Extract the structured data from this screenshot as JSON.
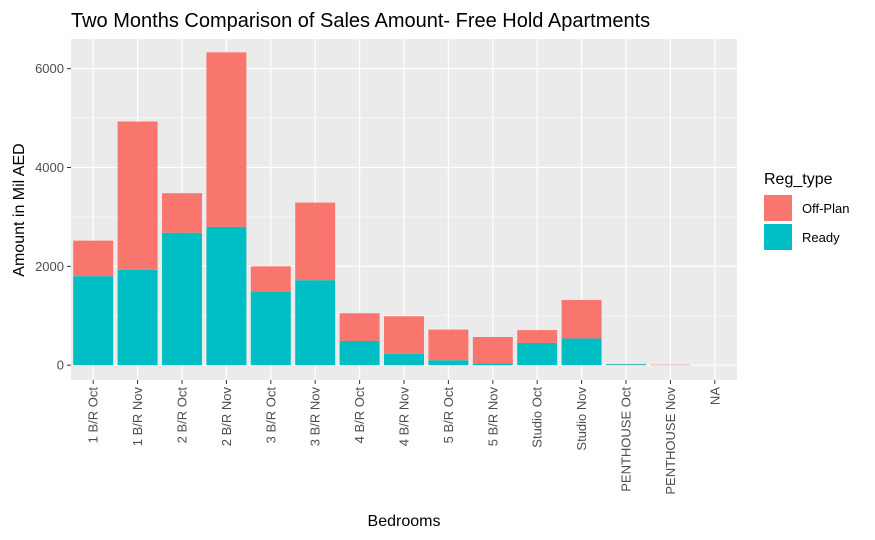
{
  "chart_data": {
    "type": "bar",
    "stacked": true,
    "title": "Two Months Comparison of Sales Amount- Free Hold Apartments",
    "xlabel": "Bedrooms",
    "ylabel": "Amount in Mil AED",
    "ylim": [
      -300,
      6600
    ],
    "yticks": [
      0,
      2000,
      4000,
      6000
    ],
    "grid": true,
    "legend": {
      "title": "Reg_type",
      "position": "right"
    },
    "categories": [
      "1 B/R Oct",
      "1 B/R Nov",
      "2 B/R Oct",
      "2 B/R Nov",
      "3 B/R Oct",
      "3 B/R Nov",
      "4 B/R Oct",
      "4 B/R Nov",
      "5 B/R Oct",
      "5 B/R Nov",
      "Studio Oct",
      "Studio Nov",
      "PENTHOUSE Oct",
      "PENTHOUSE Nov",
      "NA"
    ],
    "series": [
      {
        "name": "Ready",
        "color": "#00BFC4",
        "values": [
          1800,
          1930,
          2680,
          2800,
          1480,
          1720,
          490,
          230,
          100,
          40,
          450,
          540,
          20,
          5,
          0
        ]
      },
      {
        "name": "Off-Plan",
        "color": "#F8766D",
        "values": [
          720,
          3000,
          800,
          3530,
          520,
          1570,
          560,
          760,
          620,
          530,
          260,
          780,
          5,
          5,
          0
        ]
      }
    ]
  }
}
